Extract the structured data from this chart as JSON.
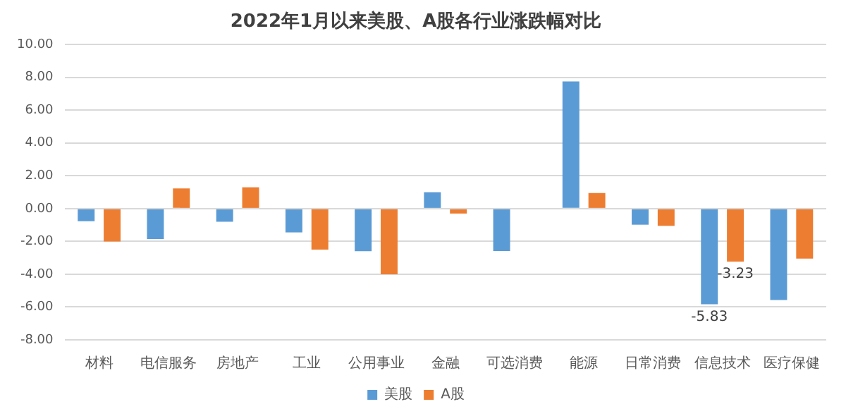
{
  "chart_data": {
    "type": "bar",
    "title": "2022年1月以来美股、A股各行业涨跌幅对比",
    "categories": [
      "材料",
      "电信服务",
      "房地产",
      "工业",
      "公用事业",
      "金融",
      "可选消费",
      "能源",
      "日常消费",
      "信息技术",
      "医疗保健"
    ],
    "series": [
      {
        "name": "美股",
        "color": "#5b9bd5",
        "values": [
          -0.77,
          -1.85,
          -0.8,
          -1.45,
          -2.6,
          1.0,
          -2.58,
          7.75,
          -0.98,
          -5.83,
          -5.57
        ],
        "value_labels": [
          null,
          null,
          null,
          null,
          null,
          null,
          null,
          null,
          null,
          "-5.83",
          null
        ]
      },
      {
        "name": "A股",
        "color": "#ed7d31",
        "values": [
          -2.0,
          1.23,
          1.3,
          -2.5,
          -4.0,
          -0.3,
          null,
          0.95,
          -1.05,
          -3.23,
          -3.05
        ],
        "value_labels": [
          null,
          null,
          null,
          null,
          null,
          null,
          null,
          null,
          null,
          "-3.23",
          null
        ]
      }
    ],
    "ylim": [
      -8,
      10
    ],
    "yticks": [
      {
        "value": -8,
        "label": "-8.00"
      },
      {
        "value": -6,
        "label": "-6.00"
      },
      {
        "value": -4,
        "label": "-4.00"
      },
      {
        "value": -2,
        "label": "-2.00"
      },
      {
        "value": 0,
        "label": "0.00"
      },
      {
        "value": 2,
        "label": "2.00"
      },
      {
        "value": 4,
        "label": "4.00"
      },
      {
        "value": 6,
        "label": "6.00"
      },
      {
        "value": 8,
        "label": "8.00"
      },
      {
        "value": 10,
        "label": "10.00"
      }
    ],
    "grid": "y",
    "legend": "bottom"
  }
}
